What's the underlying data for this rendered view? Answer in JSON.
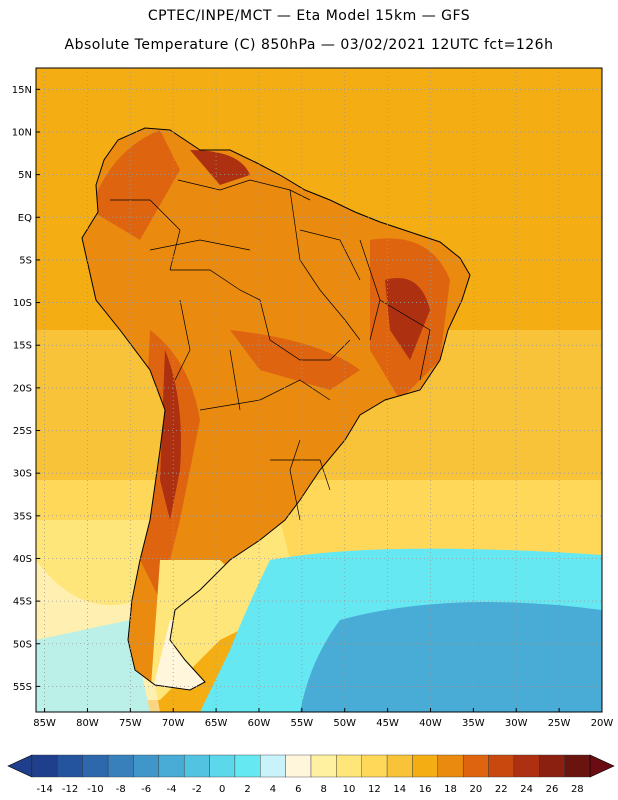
{
  "header": {
    "line1": "CPTEC/INPE/MCT —  Eta Model 15km — GFS",
    "line2": "Absolute Temperature (C) 850hPa — 03/02/2021 12UTC fct=126h"
  },
  "axes": {
    "lat_labels": [
      "15N",
      "10N",
      "5N",
      "EQ",
      "5S",
      "10S",
      "15S",
      "20S",
      "25S",
      "30S",
      "35S",
      "40S",
      "45S",
      "50S",
      "55S"
    ],
    "lon_labels": [
      "85W",
      "80W",
      "75W",
      "70W",
      "65W",
      "60W",
      "55W",
      "50W",
      "45W",
      "40W",
      "35W",
      "30W",
      "25W",
      "20W"
    ]
  },
  "colorbar": {
    "labels": [
      "-14",
      "-12",
      "-10",
      "-8",
      "-6",
      "-4",
      "-2",
      "0",
      "2",
      "4",
      "6",
      "8",
      "10",
      "12",
      "14",
      "16",
      "18",
      "20",
      "22",
      "24",
      "26",
      "28"
    ],
    "colors": [
      "#1f3e8c",
      "#25549e",
      "#2d68ad",
      "#3780bb",
      "#3f97c9",
      "#48acd6",
      "#52c3e1",
      "#5dd7ea",
      "#66e8f3",
      "#c9f3fb",
      "#fff6dc",
      "#fff1a0",
      "#ffe67a",
      "#ffd85a",
      "#f8c338",
      "#f4ae14",
      "#ea8b10",
      "#de6410",
      "#c9480e",
      "#ad3010",
      "#8c2010",
      "#6a1410"
    ]
  },
  "map": {
    "region": "South America",
    "field": "850hPa temperature",
    "colors": {
      "ocean_tropical": "#f4ae14",
      "ocean_warm": "#f8c338",
      "ocean_subtrop": "#ffd85a",
      "ocean_cool": "#ffe67a",
      "ocean_cold": "#66e8f3",
      "ocean_colder": "#48acd6",
      "land_base": "#ea8b10",
      "land_hot": "#de6410",
      "land_hotter": "#ad3010",
      "patagonia": "#fff6dc",
      "border": "#000000",
      "grid": "#9a9a9a"
    }
  }
}
